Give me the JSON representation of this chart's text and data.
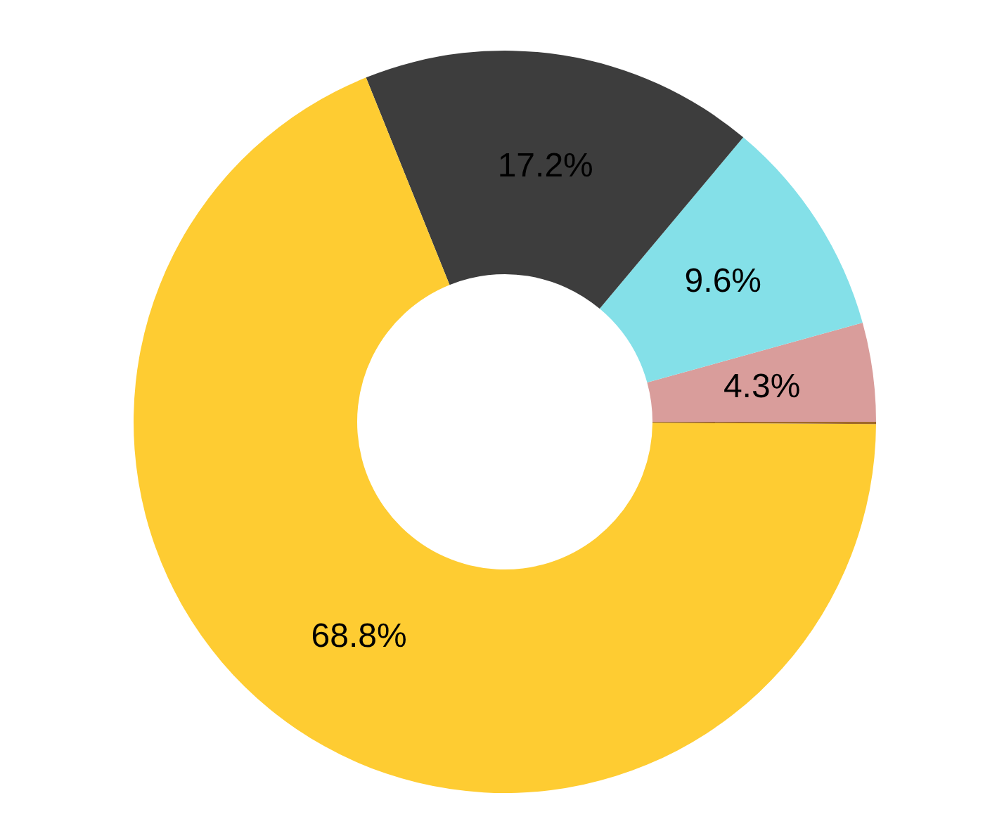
{
  "chart_data": {
    "type": "donut",
    "categories": [
      null,
      null,
      null,
      null,
      null
    ],
    "values": [
      4.3,
      9.6,
      17.2,
      68.8,
      0.1
    ],
    "colors": [
      "#d99d9b",
      "#84e0e8",
      "#3d3d3d",
      "#fecc32",
      "#a0692a"
    ],
    "value_labels": [
      "4.3%",
      "9.6%",
      "17.2%",
      "68.8%",
      null
    ]
  }
}
